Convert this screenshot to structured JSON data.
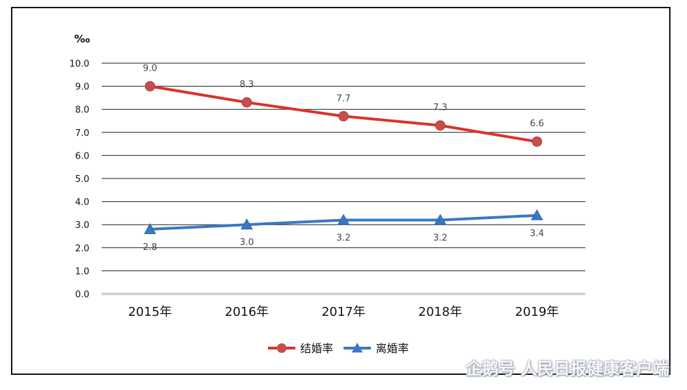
{
  "chart_data": {
    "type": "line",
    "title": "",
    "xlabel": "",
    "ylabel": "‰",
    "categories": [
      "2015年",
      "2016年",
      "2017年",
      "2018年",
      "2019年"
    ],
    "ylim": [
      0,
      10
    ],
    "yticks": [
      "0.0",
      "1.0",
      "2.0",
      "3.0",
      "4.0",
      "5.0",
      "6.0",
      "7.0",
      "8.0",
      "9.0",
      "10.0"
    ],
    "grid": true,
    "legend": "bottom",
    "series": [
      {
        "name": "结婚率",
        "values": [
          9.0,
          8.3,
          7.7,
          7.3,
          6.6
        ],
        "labels": [
          "9.0",
          "8.3",
          "7.7",
          "7.3",
          "6.6"
        ],
        "color": "#d9342b",
        "marker": "circle"
      },
      {
        "name": "离婚率",
        "values": [
          2.8,
          3.0,
          3.2,
          3.2,
          3.4
        ],
        "labels": [
          "2.8",
          "3.0",
          "3.2",
          "3.2",
          "3.4"
        ],
        "color": "#3a78c2",
        "marker": "triangle"
      }
    ]
  },
  "watermark": "企鹅号 人民日报健康客户端"
}
